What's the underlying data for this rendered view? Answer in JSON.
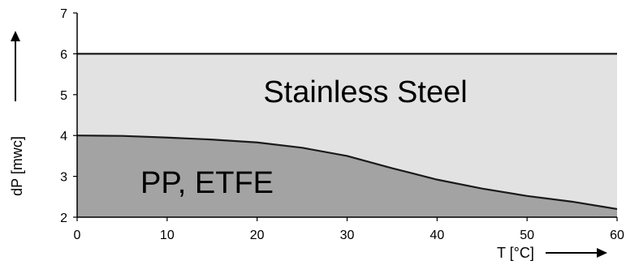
{
  "chart_data": {
    "type": "area",
    "xlabel": "T [°C]",
    "ylabel": "dP [mwc]",
    "xlim": [
      0,
      60
    ],
    "ylim": [
      2,
      7
    ],
    "x_ticks": [
      0,
      10,
      20,
      30,
      40,
      50,
      60
    ],
    "y_ticks": [
      2,
      3,
      4,
      5,
      6,
      7
    ],
    "grid": false,
    "colors": {
      "stainless_fill": "#e2e2e2",
      "pp_etfe_fill": "#a3a3a3",
      "line": "#1a1a1a"
    },
    "series": [
      {
        "name": "Stainless Steel",
        "x": [
          0,
          60
        ],
        "y": [
          6.0,
          6.0
        ]
      },
      {
        "name": "PP, ETFE",
        "x": [
          0,
          5,
          10,
          15,
          20,
          25,
          30,
          35,
          40,
          45,
          50,
          55,
          60
        ],
        "y": [
          4.0,
          3.99,
          3.95,
          3.9,
          3.83,
          3.7,
          3.5,
          3.2,
          2.92,
          2.7,
          2.52,
          2.38,
          2.2
        ]
      }
    ]
  }
}
